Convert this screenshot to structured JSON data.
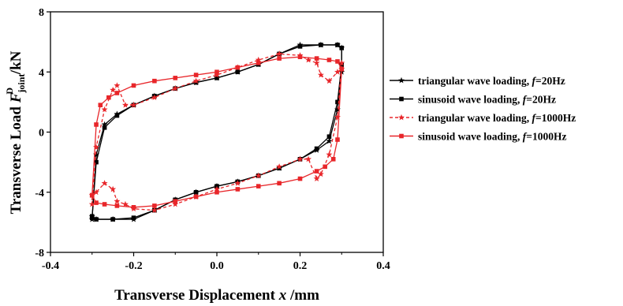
{
  "chart_data": {
    "type": "line",
    "xlabel_parts": [
      "Transverse Displacement ",
      "x",
      " /mm"
    ],
    "ylabel_parts": [
      "Transverse Load ",
      "F",
      "joint",
      "D",
      " /kN"
    ],
    "xlim": [
      -0.4,
      0.4
    ],
    "ylim": [
      -8,
      8
    ],
    "x_ticks": [
      "-0.4",
      "-0.2",
      "0.0",
      "0.2",
      "0.4"
    ],
    "y_ticks": [
      "-8",
      "-4",
      "0",
      "4",
      "8"
    ],
    "legend_position": "right",
    "series": [
      {
        "name_parts": [
          "triangular wave loading, ",
          "f",
          "=20Hz"
        ],
        "color": "#000000",
        "marker": "star",
        "dash": "solid",
        "x": [
          -0.3,
          -0.29,
          -0.27,
          -0.24,
          -0.2,
          -0.15,
          -0.1,
          -0.05,
          0.0,
          0.05,
          0.1,
          0.15,
          0.2,
          0.25,
          0.29,
          0.3,
          0.3,
          0.29,
          0.27,
          0.24,
          0.2,
          0.15,
          0.1,
          0.05,
          0.0,
          -0.05,
          -0.1,
          -0.15,
          -0.2,
          -0.25,
          -0.29,
          -0.3
        ],
        "y": [
          -5.8,
          -1.5,
          0.5,
          1.2,
          1.8,
          2.4,
          2.9,
          3.3,
          3.6,
          4.0,
          4.5,
          5.2,
          5.8,
          5.8,
          5.8,
          5.6,
          4.0,
          1.5,
          -0.6,
          -1.2,
          -1.8,
          -2.4,
          -2.9,
          -3.3,
          -3.6,
          -4.0,
          -4.5,
          -5.2,
          -5.8,
          -5.8,
          -5.8,
          -5.6
        ]
      },
      {
        "name_parts": [
          "sinusoid wave loading, ",
          "f",
          "=20Hz"
        ],
        "color": "#000000",
        "marker": "square",
        "dash": "solid",
        "x": [
          -0.3,
          -0.29,
          -0.27,
          -0.24,
          -0.2,
          -0.15,
          -0.1,
          -0.05,
          0.0,
          0.05,
          0.1,
          0.15,
          0.2,
          0.25,
          0.29,
          0.3,
          0.3,
          0.29,
          0.27,
          0.24,
          0.2,
          0.15,
          0.1,
          0.05,
          0.0,
          -0.05,
          -0.1,
          -0.15,
          -0.2,
          -0.25,
          -0.29,
          -0.3
        ],
        "y": [
          -5.7,
          -2.0,
          0.3,
          1.1,
          1.8,
          2.4,
          2.9,
          3.3,
          3.6,
          4.0,
          4.5,
          5.2,
          5.7,
          5.8,
          5.8,
          5.6,
          4.5,
          2.0,
          -0.3,
          -1.1,
          -1.8,
          -2.4,
          -2.9,
          -3.3,
          -3.6,
          -4.0,
          -4.5,
          -5.2,
          -5.7,
          -5.8,
          -5.8,
          -5.6
        ]
      },
      {
        "name_parts": [
          "triangular wave loading, ",
          "f",
          "=1000Hz"
        ],
        "color": "#e8262a",
        "marker": "star",
        "dash": "dashed",
        "x": [
          -0.3,
          -0.29,
          -0.27,
          -0.25,
          -0.24,
          -0.22,
          -0.2,
          -0.15,
          -0.1,
          -0.05,
          0.0,
          0.05,
          0.1,
          0.15,
          0.2,
          0.22,
          0.24,
          0.25,
          0.27,
          0.29,
          0.3,
          0.3,
          0.29,
          0.27,
          0.25,
          0.24,
          0.22,
          0.2,
          0.15,
          0.1,
          0.05,
          0.0,
          -0.05,
          -0.1,
          -0.15,
          -0.2,
          -0.22,
          -0.24,
          -0.25,
          -0.27,
          -0.29,
          -0.3
        ],
        "y": [
          -4.8,
          -1.0,
          1.5,
          2.8,
          3.1,
          1.8,
          1.8,
          2.3,
          2.9,
          3.4,
          3.8,
          4.3,
          4.8,
          5.2,
          5.1,
          4.8,
          4.6,
          3.8,
          3.4,
          4.0,
          4.2,
          4.6,
          1.0,
          -1.5,
          -2.8,
          -3.1,
          -1.8,
          -1.8,
          -2.3,
          -2.9,
          -3.4,
          -3.8,
          -4.3,
          -4.8,
          -5.2,
          -5.1,
          -4.8,
          -4.6,
          -3.8,
          -3.4,
          -4.0,
          -4.2
        ]
      },
      {
        "name_parts": [
          "sinusoid wave loading, ",
          "f",
          "=1000Hz"
        ],
        "color": "#e8262a",
        "marker": "square",
        "dash": "solid",
        "x": [
          -0.3,
          -0.29,
          -0.28,
          -0.26,
          -0.24,
          -0.2,
          -0.15,
          -0.1,
          -0.05,
          0.0,
          0.05,
          0.1,
          0.15,
          0.2,
          0.24,
          0.27,
          0.29,
          0.3,
          0.3,
          0.29,
          0.28,
          0.26,
          0.24,
          0.2,
          0.15,
          0.1,
          0.05,
          0.0,
          -0.05,
          -0.1,
          -0.15,
          -0.2,
          -0.24,
          -0.27,
          -0.29,
          -0.3
        ],
        "y": [
          -4.2,
          0.5,
          1.8,
          2.3,
          2.6,
          3.1,
          3.4,
          3.6,
          3.8,
          4.0,
          4.3,
          4.6,
          4.9,
          5.0,
          4.9,
          4.8,
          4.7,
          4.2,
          4.2,
          -0.5,
          -1.8,
          -2.3,
          -2.6,
          -3.1,
          -3.4,
          -3.6,
          -3.8,
          -4.0,
          -4.3,
          -4.6,
          -4.9,
          -5.0,
          -4.9,
          -4.8,
          -4.7,
          -4.2
        ]
      }
    ]
  }
}
